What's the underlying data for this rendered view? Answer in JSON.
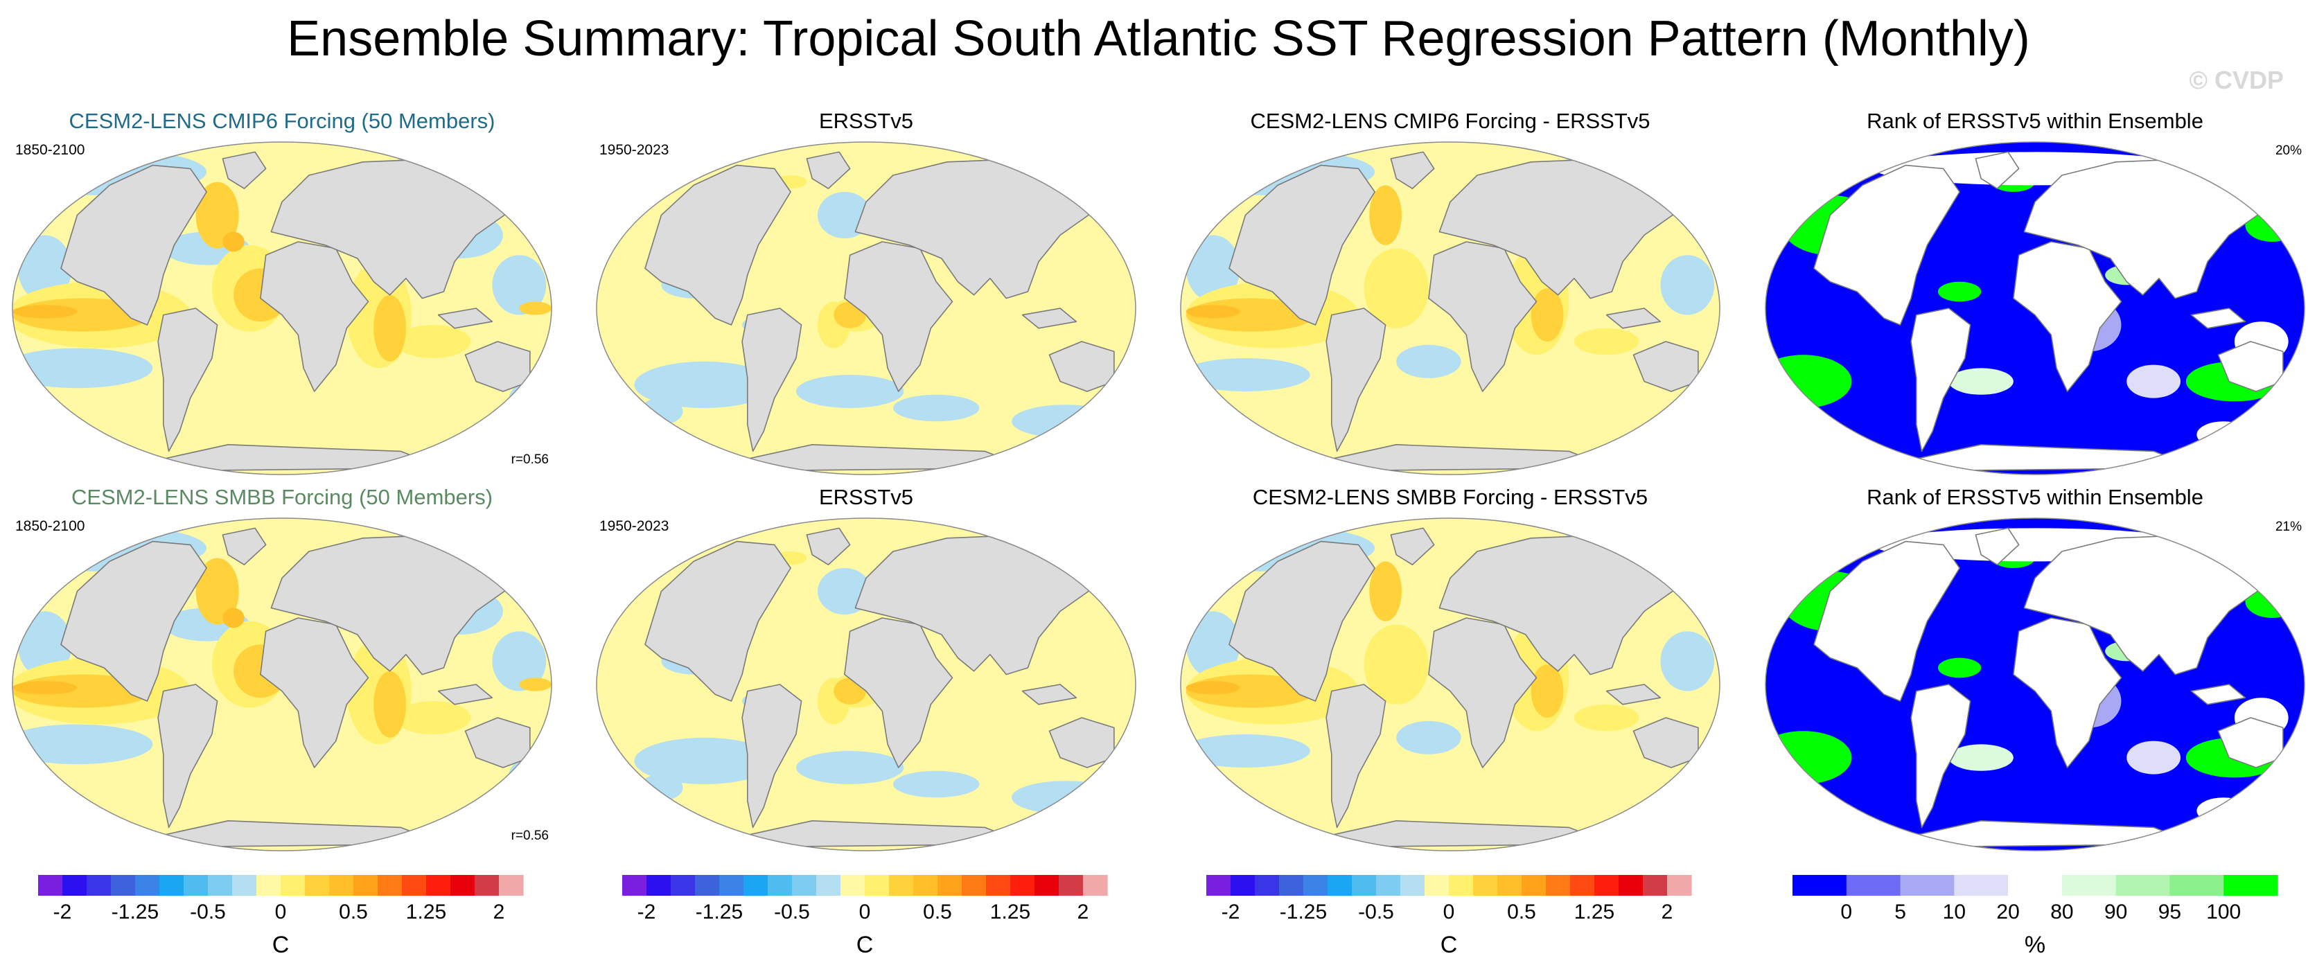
{
  "figure": {
    "title": "Ensemble Summary: Tropical South Atlantic SST Regression Pattern (Monthly)",
    "watermark": "© CVDP"
  },
  "colors": {
    "land": "#dcdcdc",
    "coast": "#7a7a7a",
    "diverging_scale": [
      "#7a1fe0",
      "#2d10f0",
      "#3a35e6",
      "#3c63dc",
      "#3b84e6",
      "#1aa6f0",
      "#4fbcf0",
      "#7ecdf0",
      "#b4def2",
      "#fff9a6",
      "#fff06e",
      "#ffd23c",
      "#ffbf28",
      "#ffa41a",
      "#ff7a14",
      "#ff4a12",
      "#ff1e0e",
      "#e8000a",
      "#d23c46",
      "#f0a8a8"
    ],
    "rank_scale": [
      "#0000ff",
      "#6b6bf5",
      "#a8a8f5",
      "#dedef8",
      "#ffffff",
      "#dcfadc",
      "#b0f5b0",
      "#8cf08c",
      "#00ff00"
    ]
  },
  "chart_data": [
    {
      "type": "heatmap",
      "projection": "global-robinson",
      "title": "CESM2-LENS CMIP6 Forcing (50 Members)",
      "title_color": "#1f6b8a",
      "period": "1850-2100",
      "corner_label": "r=0.56",
      "colorbar": "diverging",
      "pattern": "model",
      "variable": "SST regression",
      "units": "C"
    },
    {
      "type": "heatmap",
      "projection": "global-robinson",
      "title": "ERSSTv5",
      "title_color": "#000000",
      "period": "1950-2023",
      "corner_label": "",
      "colorbar": "diverging",
      "pattern": "obs",
      "variable": "SST regression",
      "units": "C"
    },
    {
      "type": "heatmap",
      "projection": "global-robinson",
      "title": "CESM2-LENS CMIP6 Forcing - ERSSTv5",
      "title_color": "#000000",
      "period": "",
      "corner_label": "",
      "colorbar": "diverging",
      "pattern": "diff",
      "variable": "SST regression difference",
      "units": "C"
    },
    {
      "type": "heatmap",
      "projection": "global-robinson",
      "title": "Rank of ERSSTv5 within Ensemble",
      "title_color": "#000000",
      "period": "",
      "corner_label": "20%",
      "colorbar": "rank",
      "pattern": "rank",
      "variable": "rank",
      "units": "%"
    },
    {
      "type": "heatmap",
      "projection": "global-robinson",
      "title": "CESM2-LENS SMBB Forcing (50 Members)",
      "title_color": "#5a8a62",
      "period": "1850-2100",
      "corner_label": "r=0.56",
      "colorbar": "diverging",
      "pattern": "model",
      "variable": "SST regression",
      "units": "C"
    },
    {
      "type": "heatmap",
      "projection": "global-robinson",
      "title": "ERSSTv5",
      "title_color": "#000000",
      "period": "1950-2023",
      "corner_label": "",
      "colorbar": "diverging",
      "pattern": "obs",
      "variable": "SST regression",
      "units": "C"
    },
    {
      "type": "heatmap",
      "projection": "global-robinson",
      "title": "CESM2-LENS SMBB Forcing - ERSSTv5",
      "title_color": "#000000",
      "period": "",
      "corner_label": "",
      "colorbar": "diverging",
      "pattern": "diff",
      "variable": "SST regression difference",
      "units": "C"
    },
    {
      "type": "heatmap",
      "projection": "global-robinson",
      "title": "Rank of ERSSTv5 within Ensemble",
      "title_color": "#000000",
      "period": "",
      "corner_label": "21%",
      "colorbar": "rank",
      "pattern": "rank",
      "variable": "rank",
      "units": "%"
    }
  ],
  "colorbars": [
    {
      "kind": "diverging",
      "label": "C",
      "levels": [
        -2.25,
        -2,
        -1.75,
        -1.5,
        -1.25,
        -1,
        -0.75,
        -0.5,
        -0.25,
        -0.125,
        0,
        0.125,
        0.25,
        0.5,
        0.75,
        1,
        1.25,
        1.5,
        1.75,
        2,
        2.25
      ],
      "tick_values": [
        -2,
        -1.25,
        -0.5,
        0,
        0.5,
        1.25,
        2
      ],
      "tick_labels": [
        "-2",
        "-1.25",
        "-0.5",
        "0",
        "0.5",
        "1.25",
        "2"
      ]
    },
    {
      "kind": "diverging",
      "label": "C",
      "levels": [
        -2.25,
        -2,
        -1.75,
        -1.5,
        -1.25,
        -1,
        -0.75,
        -0.5,
        -0.25,
        -0.125,
        0,
        0.125,
        0.25,
        0.5,
        0.75,
        1,
        1.25,
        1.5,
        1.75,
        2,
        2.25
      ],
      "tick_values": [
        -2,
        -1.25,
        -0.5,
        0,
        0.5,
        1.25,
        2
      ],
      "tick_labels": [
        "-2",
        "-1.25",
        "-0.5",
        "0",
        "0.5",
        "1.25",
        "2"
      ]
    },
    {
      "kind": "diverging",
      "label": "C",
      "levels": [
        -2.25,
        -2,
        -1.75,
        -1.5,
        -1.25,
        -1,
        -0.75,
        -0.5,
        -0.25,
        -0.125,
        0,
        0.125,
        0.25,
        0.5,
        0.75,
        1,
        1.25,
        1.5,
        1.75,
        2,
        2.25
      ],
      "tick_values": [
        -2,
        -1.25,
        -0.5,
        0,
        0.5,
        1.25,
        2
      ],
      "tick_labels": [
        "-2",
        "-1.25",
        "-0.5",
        "0",
        "0.5",
        "1.25",
        "2"
      ]
    },
    {
      "kind": "rank",
      "label": "%",
      "levels": [
        0,
        5,
        10,
        20,
        80,
        90,
        95,
        100
      ],
      "tick_labels": [
        "0",
        "5",
        "10",
        "20",
        "80",
        "90",
        "95",
        "100"
      ]
    }
  ]
}
